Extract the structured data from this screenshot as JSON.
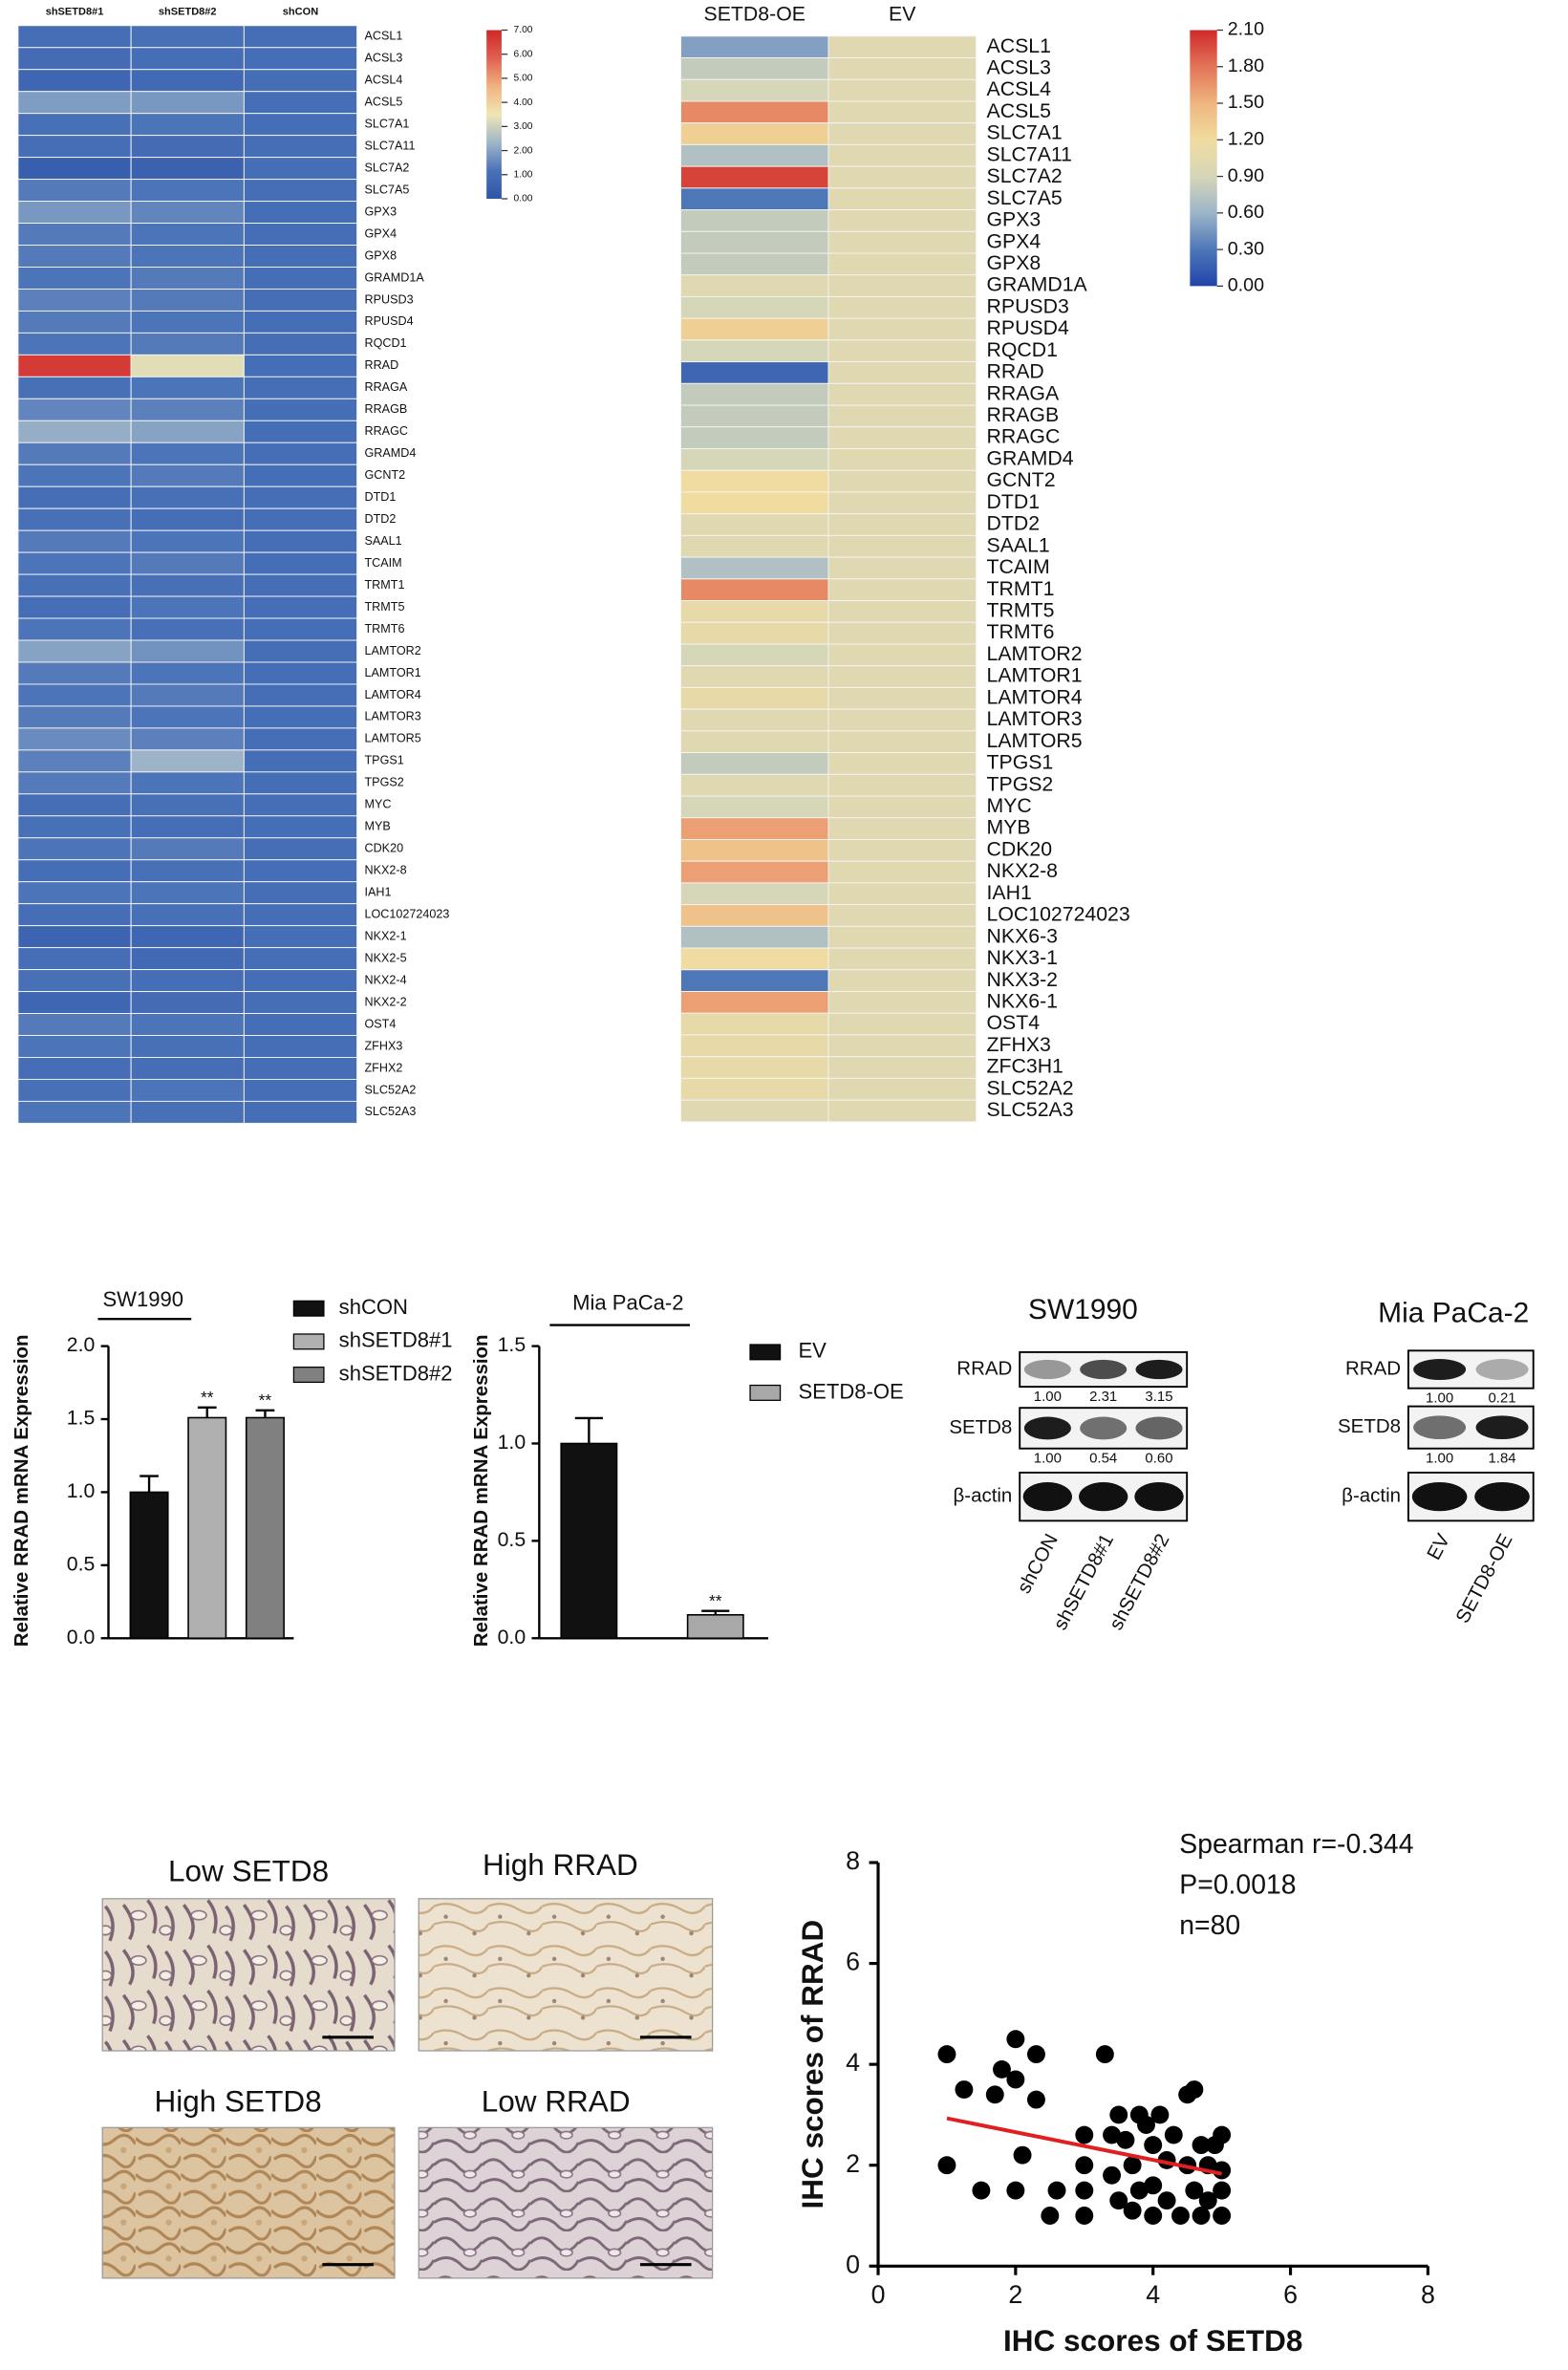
{
  "chart_data": [
    {
      "type": "heatmap",
      "categories": [
        "ACSL1",
        "ACSL3",
        "ACSL4",
        "ACSL5",
        "SLC7A1",
        "SLC7A11",
        "SLC7A2",
        "SLC7A5",
        "GPX3",
        "GPX4",
        "GPX8",
        "GRAMD1A",
        "RPUSD3",
        "RPUSD4",
        "RQCD1",
        "RRAD",
        "RRAGA",
        "RRAGB",
        "RRAGC",
        "GRAMD4",
        "GCNT2",
        "DTD1",
        "DTD2",
        "SAAL1",
        "TCAIM",
        "TRMT1",
        "TRMT5",
        "TRMT6",
        "LAMTOR2",
        "LAMTOR1",
        "LAMTOR4",
        "LAMTOR3",
        "LAMTOR5",
        "TPGS1",
        "TPGS2",
        "MYC",
        "MYB",
        "CDK20",
        "NKX2-8",
        "IAH1",
        "LOC102724023",
        "NKX2-1",
        "NKX2-5",
        "NKX2-4",
        "NKX2-2",
        "OST4",
        "ZFHX3",
        "ZFHX2",
        "SLC52A2",
        "SLC52A3"
      ],
      "series": [
        {
          "name": "shSETD8#1",
          "values": [
            1.0,
            0.9,
            0.7,
            1.9,
            1.1,
            1.0,
            0.4,
            1.3,
            1.8,
            1.3,
            1.3,
            1.2,
            1.4,
            1.3,
            1.2,
            6.6,
            1.1,
            1.5,
            2.2,
            1.3,
            1.2,
            1.0,
            1.1,
            1.3,
            1.2,
            1.1,
            1.0,
            1.2,
            2.0,
            1.3,
            1.2,
            1.3,
            1.6,
            1.4,
            1.3,
            1.0,
            1.1,
            1.2,
            1.0,
            1.2,
            1.0,
            0.6,
            1.0,
            1.1,
            0.7,
            1.3,
            1.2,
            1.0,
            1.1,
            1.2
          ]
        },
        {
          "name": "shSETD8#2",
          "values": [
            1.1,
            1.0,
            0.8,
            1.8,
            1.2,
            0.9,
            0.5,
            1.2,
            1.5,
            1.2,
            1.2,
            1.3,
            1.3,
            1.2,
            1.3,
            3.3,
            1.2,
            1.4,
            2.0,
            1.2,
            1.3,
            1.1,
            1.0,
            1.2,
            1.3,
            1.1,
            1.2,
            1.1,
            1.7,
            1.2,
            1.3,
            1.2,
            1.4,
            2.3,
            1.2,
            1.1,
            1.0,
            1.3,
            1.1,
            1.2,
            1.1,
            0.7,
            0.8,
            1.0,
            0.9,
            1.2,
            1.1,
            1.0,
            1.2,
            1.1
          ]
        },
        {
          "name": "shCON",
          "values": [
            1.0,
            1.0,
            1.0,
            1.0,
            1.0,
            1.0,
            1.0,
            1.0,
            1.0,
            1.0,
            1.0,
            1.0,
            1.0,
            1.0,
            1.0,
            1.0,
            1.0,
            1.0,
            1.0,
            1.0,
            1.0,
            1.0,
            1.0,
            1.0,
            1.0,
            1.0,
            1.0,
            1.0,
            1.0,
            1.0,
            1.0,
            1.0,
            1.0,
            1.0,
            1.0,
            1.0,
            1.0,
            1.0,
            1.0,
            1.0,
            1.0,
            1.0,
            1.0,
            1.0,
            1.0,
            1.0,
            1.0,
            1.0,
            1.0,
            1.0
          ]
        }
      ],
      "clim": [
        0,
        7
      ],
      "cticks": [
        {
          "value": 0,
          "label": "0.00"
        },
        {
          "value": 1,
          "label": "1.00"
        },
        {
          "value": 2,
          "label": "2.00"
        },
        {
          "value": 3,
          "label": "3.00"
        },
        {
          "value": 4,
          "label": "4.00"
        },
        {
          "value": 5,
          "label": "5.00"
        },
        {
          "value": 6,
          "label": "6.00"
        },
        {
          "value": 7,
          "label": "7.00"
        }
      ],
      "colorscale": [
        "#2f55a8",
        "#4a72b8",
        "#9fb6c8",
        "#efe6b4",
        "#f2b380",
        "#e06050",
        "#d02828"
      ]
    },
    {
      "type": "heatmap",
      "categories": [
        "ACSL1",
        "ACSL3",
        "ACSL4",
        "ACSL5",
        "SLC7A1",
        "SLC7A11",
        "SLC7A2",
        "SLC7A5",
        "GPX3",
        "GPX4",
        "GPX8",
        "GRAMD1A",
        "RPUSD3",
        "RPUSD4",
        "RQCD1",
        "RRAD",
        "RRAGA",
        "RRAGB",
        "RRAGC",
        "GRAMD4",
        "GCNT2",
        "DTD1",
        "DTD2",
        "SAAL1",
        "TCAIM",
        "TRMT1",
        "TRMT5",
        "TRMT6",
        "LAMTOR2",
        "LAMTOR1",
        "LAMTOR4",
        "LAMTOR3",
        "LAMTOR5",
        "TPGS1",
        "TPGS2",
        "MYC",
        "MYB",
        "CDK20",
        "NKX2-8",
        "IAH1",
        "LOC102724023",
        "NKX6-3",
        "NKX3-1",
        "NKX3-2",
        "NKX6-1",
        "OST4",
        "ZFHX3",
        "ZFC3H1",
        "SLC52A2",
        "SLC52A3"
      ],
      "series": [
        {
          "name": "SETD8-OE",
          "values": [
            0.5,
            0.8,
            0.9,
            1.7,
            1.3,
            0.7,
            2.0,
            0.3,
            0.8,
            0.8,
            0.8,
            1.0,
            0.9,
            1.3,
            0.9,
            0.2,
            0.8,
            0.8,
            0.8,
            0.9,
            1.2,
            1.2,
            1.0,
            1.0,
            0.7,
            1.7,
            1.1,
            1.1,
            0.9,
            1.0,
            1.1,
            1.0,
            1.0,
            0.8,
            1.0,
            0.9,
            1.6,
            1.4,
            1.6,
            0.9,
            1.4,
            0.7,
            1.2,
            0.3,
            1.6,
            1.1,
            1.1,
            1.1,
            1.1,
            1.0
          ]
        },
        {
          "name": "EV",
          "values": [
            1.0,
            1.0,
            1.0,
            1.0,
            1.0,
            1.0,
            1.0,
            1.0,
            1.0,
            1.0,
            1.0,
            1.0,
            1.0,
            1.0,
            1.0,
            1.0,
            1.0,
            1.0,
            1.0,
            1.0,
            1.0,
            1.0,
            1.0,
            1.0,
            1.0,
            1.0,
            1.0,
            1.0,
            1.0,
            1.0,
            1.0,
            1.0,
            1.0,
            1.0,
            1.0,
            1.0,
            1.0,
            1.0,
            1.0,
            1.0,
            1.0,
            1.0,
            1.0,
            1.0,
            1.0,
            1.0,
            1.0,
            1.0,
            1.0,
            1.0
          ]
        }
      ],
      "clim": [
        0,
        2.1
      ],
      "cticks": [
        {
          "value": 0,
          "label": "0.00"
        },
        {
          "value": 0.3,
          "label": "0.30"
        },
        {
          "value": 0.6,
          "label": "0.60"
        },
        {
          "value": 0.9,
          "label": "0.90"
        },
        {
          "value": 1.2,
          "label": "1.20"
        },
        {
          "value": 1.5,
          "label": "1.50"
        },
        {
          "value": 1.8,
          "label": "1.80"
        },
        {
          "value": 2.1,
          "label": "2.10"
        }
      ],
      "colorscale": [
        "#2244aa",
        "#4e77b8",
        "#9db5c8",
        "#d6d6b8",
        "#f0dca0",
        "#efb57f",
        "#e27458",
        "#d02a2a"
      ]
    },
    {
      "type": "bar",
      "title": "SW1990",
      "ylabel": "Relative  RRAD mRNA Expression",
      "categories": [
        "shCON",
        "shSETD8#1",
        "shSETD8#2"
      ],
      "values": [
        1.0,
        1.51,
        1.51
      ],
      "errors": [
        0.11,
        0.07,
        0.05
      ],
      "colors": [
        "#111111",
        "#b0b0b0",
        "#808080"
      ],
      "significance": [
        {
          "category": "shSETD8#1",
          "text": "**"
        },
        {
          "category": "shSETD8#2",
          "text": "**"
        }
      ],
      "ylim": [
        0,
        2.0
      ],
      "yticks": [
        {
          "value": 0,
          "label": "0.0"
        },
        {
          "value": 0.5,
          "label": "0.5"
        },
        {
          "value": 1,
          "label": "1.0"
        },
        {
          "value": 1.5,
          "label": "1.5"
        },
        {
          "value": 2,
          "label": "2.0"
        }
      ]
    },
    {
      "type": "bar",
      "title": "Mia PaCa-2",
      "ylabel": "Relative  RRAD mRNA Expression",
      "categories": [
        "EV",
        "SETD8-OE"
      ],
      "values": [
        1.0,
        0.12
      ],
      "errors": [
        0.13,
        0.02
      ],
      "colors": [
        "#111111",
        "#a8a8a8"
      ],
      "significance": [
        {
          "category": "SETD8-OE",
          "text": "**"
        }
      ],
      "ylim": [
        0,
        1.5
      ],
      "yticks": [
        {
          "value": 0,
          "label": "0.0"
        },
        {
          "value": 0.5,
          "label": "0.5"
        },
        {
          "value": 1,
          "label": "1.0"
        },
        {
          "value": 1.5,
          "label": "1.5"
        }
      ]
    },
    {
      "type": "blot",
      "title": "SW1990",
      "lanes": [
        "shCON",
        "shSETD8#1",
        "shSETD8#2"
      ],
      "rows": [
        {
          "label": "RRAD",
          "values": [
            1.0,
            2.31,
            3.15
          ],
          "value_labels": [
            "1.00",
            "2.31",
            "3.15"
          ]
        },
        {
          "label": "SETD8",
          "values": [
            1.0,
            0.54,
            0.6
          ],
          "value_labels": [
            "1.00",
            "0.54",
            "0.60"
          ]
        },
        {
          "label": "β-actin"
        }
      ]
    },
    {
      "type": "blot",
      "title": "Mia PaCa-2",
      "lanes": [
        "EV",
        "SETD8-OE"
      ],
      "rows": [
        {
          "label": "RRAD",
          "values": [
            1.0,
            0.21
          ],
          "value_labels": [
            "1.00",
            "0.21"
          ]
        },
        {
          "label": "SETD8",
          "values": [
            1.0,
            1.84
          ],
          "value_labels": [
            "1.00",
            "1.84"
          ]
        },
        {
          "label": "β-actin"
        }
      ]
    },
    {
      "type": "image_panels",
      "panels": [
        "Low SETD8",
        "High RRAD",
        "High SETD8",
        "Low RRAD"
      ]
    },
    {
      "type": "scatter",
      "xlabel": "IHC scores of SETD8",
      "ylabel": "IHC scores of RRAD",
      "annotations": [
        "Spearman r=-0.344",
        "P=0.0018",
        "n=80"
      ],
      "x": [
        1.0,
        1.0,
        1.25,
        1.5,
        1.7,
        1.8,
        2.0,
        2.0,
        2.0,
        2.3,
        2.3,
        2.1,
        2.5,
        2.6,
        3.0,
        3.0,
        3.0,
        3.0,
        3.3,
        3.4,
        3.4,
        3.5,
        3.5,
        3.6,
        3.7,
        3.7,
        3.8,
        3.8,
        3.9,
        4.0,
        4.0,
        4.0,
        4.1,
        4.2,
        4.2,
        4.3,
        4.4,
        4.5,
        4.5,
        4.6,
        4.6,
        4.7,
        4.7,
        4.8,
        4.8,
        4.9,
        5.0,
        5.0,
        5.0,
        5.0
      ],
      "values": [
        4.2,
        2.0,
        3.5,
        1.5,
        3.4,
        3.9,
        4.5,
        3.7,
        1.5,
        4.2,
        3.3,
        2.2,
        1.0,
        1.5,
        2.6,
        2.0,
        1.5,
        1.0,
        4.2,
        2.6,
        1.8,
        3.0,
        1.3,
        2.5,
        1.1,
        2.0,
        3.0,
        1.5,
        2.8,
        2.4,
        1.6,
        1.0,
        3.0,
        2.1,
        1.3,
        2.6,
        1.0,
        3.4,
        2.0,
        3.5,
        1.5,
        2.4,
        1.0,
        2.0,
        1.3,
        2.4,
        2.6,
        1.9,
        1.5,
        1.0
      ],
      "color": "#000000",
      "fit": {
        "x": [
          1,
          5
        ],
        "y": [
          2.93,
          1.83
        ],
        "color": "#e02020"
      },
      "xlim": [
        0,
        8
      ],
      "ylim": [
        0,
        8
      ],
      "xticks": [
        0,
        2,
        4,
        6,
        8
      ],
      "yticks": [
        0,
        2,
        4,
        6,
        8
      ]
    }
  ]
}
